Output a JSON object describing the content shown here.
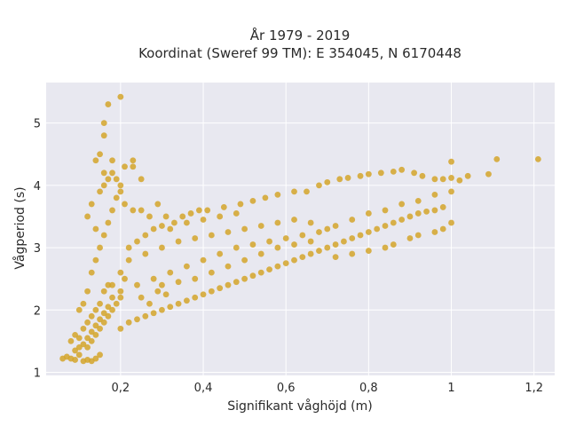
{
  "chart_data": {
    "type": "scatter",
    "title": "År 1979 - 2019",
    "subtitle": "Koordinat (Sweref 99 TM): E 354045, N 6170448",
    "xlabel": "Signifikant våghöjd (m)",
    "ylabel": "Vågperiod (s)",
    "xlim": [
      0.02,
      1.25
    ],
    "ylim": [
      0.95,
      5.65
    ],
    "x_ticks": [
      0.2,
      0.4,
      0.6,
      0.8,
      1,
      1.2
    ],
    "x_tick_labels": [
      "0,2",
      "0,4",
      "0,6",
      "0,8",
      "1",
      "1,2"
    ],
    "y_ticks": [
      1,
      2,
      3,
      4,
      5
    ],
    "y_tick_labels": [
      "1",
      "2",
      "3",
      "4",
      "5"
    ],
    "grid": true,
    "marker_color": "#d4a52a",
    "background_color": "#e8e8f0",
    "series": [
      {
        "points": [
          [
            0.06,
            1.22
          ],
          [
            0.07,
            1.25
          ],
          [
            0.08,
            1.22
          ],
          [
            0.09,
            1.2
          ],
          [
            0.1,
            1.28
          ],
          [
            0.11,
            1.18
          ],
          [
            0.12,
            1.2
          ],
          [
            0.13,
            1.18
          ],
          [
            0.14,
            1.22
          ],
          [
            0.15,
            1.28
          ],
          [
            0.08,
            1.5
          ],
          [
            0.09,
            1.6
          ],
          [
            0.1,
            1.55
          ],
          [
            0.11,
            1.7
          ],
          [
            0.12,
            1.8
          ],
          [
            0.13,
            1.9
          ],
          [
            0.14,
            2.0
          ],
          [
            0.15,
            2.1
          ],
          [
            0.16,
            2.3
          ],
          [
            0.17,
            2.4
          ],
          [
            0.1,
            2.0
          ],
          [
            0.11,
            2.1
          ],
          [
            0.12,
            2.3
          ],
          [
            0.13,
            2.6
          ],
          [
            0.14,
            2.8
          ],
          [
            0.15,
            3.0
          ],
          [
            0.16,
            3.2
          ],
          [
            0.17,
            3.4
          ],
          [
            0.18,
            3.6
          ],
          [
            0.19,
            3.8
          ],
          [
            0.15,
            3.9
          ],
          [
            0.16,
            4.0
          ],
          [
            0.17,
            4.1
          ],
          [
            0.18,
            4.2
          ],
          [
            0.14,
            4.4
          ],
          [
            0.15,
            4.5
          ],
          [
            0.16,
            4.2
          ],
          [
            0.13,
            3.7
          ],
          [
            0.12,
            3.5
          ],
          [
            0.14,
            3.3
          ],
          [
            0.16,
            4.8
          ],
          [
            0.16,
            5.0
          ],
          [
            0.17,
            5.3
          ],
          [
            0.2,
            5.42
          ],
          [
            0.18,
            4.4
          ],
          [
            0.21,
            4.3
          ],
          [
            0.23,
            4.4
          ],
          [
            0.23,
            4.3
          ],
          [
            0.25,
            4.1
          ],
          [
            0.19,
            4.1
          ],
          [
            0.2,
            4.0
          ],
          [
            0.2,
            3.9
          ],
          [
            0.21,
            3.7
          ],
          [
            0.23,
            3.6
          ],
          [
            0.25,
            3.6
          ],
          [
            0.27,
            3.5
          ],
          [
            0.29,
            3.7
          ],
          [
            0.31,
            3.5
          ],
          [
            0.33,
            3.4
          ],
          [
            0.35,
            3.5
          ],
          [
            0.37,
            3.55
          ],
          [
            0.39,
            3.6
          ],
          [
            0.41,
            3.6
          ],
          [
            0.45,
            3.65
          ],
          [
            0.49,
            3.7
          ],
          [
            0.52,
            3.75
          ],
          [
            0.55,
            3.8
          ],
          [
            0.58,
            3.85
          ],
          [
            0.62,
            3.9
          ],
          [
            0.65,
            3.9
          ],
          [
            0.68,
            4.0
          ],
          [
            0.7,
            4.05
          ],
          [
            0.73,
            4.1
          ],
          [
            0.75,
            4.12
          ],
          [
            0.78,
            4.15
          ],
          [
            0.8,
            4.18
          ],
          [
            0.83,
            4.2
          ],
          [
            0.86,
            4.22
          ],
          [
            0.88,
            4.25
          ],
          [
            0.91,
            4.2
          ],
          [
            0.93,
            4.15
          ],
          [
            0.96,
            4.1
          ],
          [
            0.98,
            4.1
          ],
          [
            1.0,
            4.12
          ],
          [
            1.02,
            4.08
          ],
          [
            1.04,
            4.15
          ],
          [
            1.0,
            4.38
          ],
          [
            1.09,
            4.18
          ],
          [
            1.11,
            4.42
          ],
          [
            1.21,
            4.42
          ],
          [
            0.2,
            1.7
          ],
          [
            0.22,
            1.8
          ],
          [
            0.24,
            1.85
          ],
          [
            0.26,
            1.9
          ],
          [
            0.28,
            1.95
          ],
          [
            0.3,
            2.0
          ],
          [
            0.32,
            2.05
          ],
          [
            0.34,
            2.1
          ],
          [
            0.36,
            2.15
          ],
          [
            0.38,
            2.2
          ],
          [
            0.4,
            2.25
          ],
          [
            0.42,
            2.3
          ],
          [
            0.44,
            2.35
          ],
          [
            0.46,
            2.4
          ],
          [
            0.48,
            2.45
          ],
          [
            0.5,
            2.5
          ],
          [
            0.52,
            2.55
          ],
          [
            0.54,
            2.6
          ],
          [
            0.56,
            2.65
          ],
          [
            0.58,
            2.7
          ],
          [
            0.6,
            2.75
          ],
          [
            0.62,
            2.8
          ],
          [
            0.64,
            2.85
          ],
          [
            0.66,
            2.9
          ],
          [
            0.68,
            2.95
          ],
          [
            0.7,
            3.0
          ],
          [
            0.72,
            3.05
          ],
          [
            0.74,
            3.1
          ],
          [
            0.76,
            3.15
          ],
          [
            0.78,
            3.2
          ],
          [
            0.8,
            3.25
          ],
          [
            0.82,
            3.3
          ],
          [
            0.84,
            3.35
          ],
          [
            0.86,
            3.4
          ],
          [
            0.88,
            3.45
          ],
          [
            0.9,
            3.5
          ],
          [
            0.92,
            3.55
          ],
          [
            0.94,
            3.58
          ],
          [
            0.96,
            3.6
          ],
          [
            0.98,
            3.65
          ],
          [
            1.0,
            3.4
          ],
          [
            0.98,
            3.3
          ],
          [
            0.96,
            3.25
          ],
          [
            0.92,
            3.2
          ],
          [
            0.9,
            3.15
          ],
          [
            0.86,
            3.05
          ],
          [
            0.84,
            3.0
          ],
          [
            0.8,
            2.95
          ],
          [
            0.76,
            2.9
          ],
          [
            0.72,
            2.85
          ],
          [
            0.7,
            3.3
          ],
          [
            0.66,
            3.4
          ],
          [
            0.62,
            3.45
          ],
          [
            0.58,
            3.4
          ],
          [
            0.54,
            3.35
          ],
          [
            0.5,
            3.3
          ],
          [
            0.46,
            3.25
          ],
          [
            0.42,
            3.2
          ],
          [
            0.38,
            3.15
          ],
          [
            0.34,
            3.1
          ],
          [
            0.3,
            3.0
          ],
          [
            0.26,
            2.9
          ],
          [
            0.22,
            2.8
          ],
          [
            0.2,
            2.6
          ],
          [
            0.18,
            2.4
          ],
          [
            0.2,
            2.2
          ],
          [
            0.24,
            2.4
          ],
          [
            0.28,
            2.5
          ],
          [
            0.32,
            2.6
          ],
          [
            0.36,
            2.7
          ],
          [
            0.4,
            2.8
          ],
          [
            0.44,
            2.9
          ],
          [
            0.48,
            3.0
          ],
          [
            0.52,
            3.05
          ],
          [
            0.56,
            3.1
          ],
          [
            0.6,
            3.15
          ],
          [
            0.64,
            3.2
          ],
          [
            0.68,
            3.25
          ],
          [
            0.72,
            3.35
          ],
          [
            0.76,
            3.45
          ],
          [
            0.8,
            3.55
          ],
          [
            0.84,
            3.6
          ],
          [
            0.88,
            3.7
          ],
          [
            0.92,
            3.75
          ],
          [
            0.96,
            3.85
          ],
          [
            1.0,
            3.9
          ],
          [
            0.3,
            2.4
          ],
          [
            0.34,
            2.45
          ],
          [
            0.38,
            2.5
          ],
          [
            0.42,
            2.6
          ],
          [
            0.46,
            2.7
          ],
          [
            0.5,
            2.8
          ],
          [
            0.54,
            2.9
          ],
          [
            0.58,
            3.0
          ],
          [
            0.62,
            3.05
          ],
          [
            0.66,
            3.1
          ],
          [
            0.25,
            2.2
          ],
          [
            0.27,
            2.1
          ],
          [
            0.29,
            2.3
          ],
          [
            0.31,
            2.25
          ],
          [
            0.12,
            1.4
          ],
          [
            0.13,
            1.5
          ],
          [
            0.14,
            1.6
          ],
          [
            0.15,
            1.7
          ],
          [
            0.16,
            1.8
          ],
          [
            0.17,
            1.9
          ],
          [
            0.18,
            2.0
          ],
          [
            0.19,
            2.1
          ],
          [
            0.2,
            2.3
          ],
          [
            0.21,
            2.5
          ],
          [
            0.09,
            1.35
          ],
          [
            0.1,
            1.4
          ],
          [
            0.11,
            1.45
          ],
          [
            0.12,
            1.55
          ],
          [
            0.13,
            1.65
          ],
          [
            0.14,
            1.75
          ],
          [
            0.15,
            1.85
          ],
          [
            0.16,
            1.95
          ],
          [
            0.17,
            2.05
          ],
          [
            0.18,
            2.2
          ],
          [
            0.22,
            3.0
          ],
          [
            0.24,
            3.1
          ],
          [
            0.26,
            3.2
          ],
          [
            0.28,
            3.3
          ],
          [
            0.3,
            3.35
          ],
          [
            0.32,
            3.3
          ],
          [
            0.36,
            3.4
          ],
          [
            0.4,
            3.45
          ],
          [
            0.44,
            3.5
          ],
          [
            0.48,
            3.55
          ]
        ]
      }
    ]
  }
}
